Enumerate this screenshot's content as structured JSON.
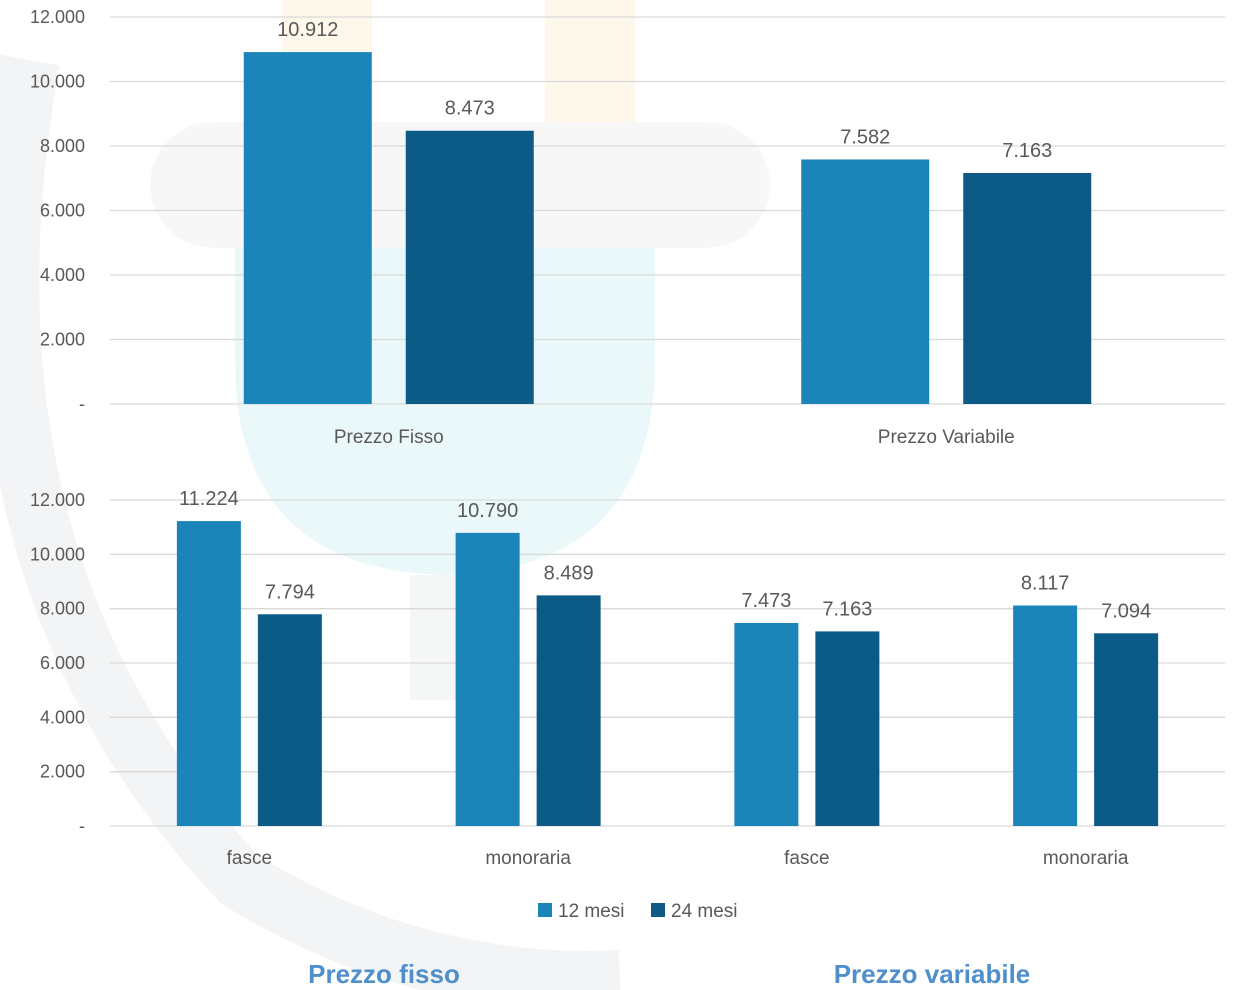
{
  "colors": {
    "series_12": "#1b84b8",
    "series_24": "#0c5a86"
  },
  "legend": [
    {
      "label": "12 mesi",
      "color": "#1b84b8"
    },
    {
      "label": "24 mesi",
      "color": "#0c5a86"
    }
  ],
  "section_titles": {
    "left": "Prezzo fisso",
    "right": "Prezzo variabile"
  },
  "chart_data": [
    {
      "type": "bar",
      "categories": [
        "Prezzo Fisso",
        "Prezzo Variabile"
      ],
      "series": [
        {
          "name": "12 mesi",
          "values": [
            10912,
            7582
          ],
          "labels": [
            "10.912",
            "7.582"
          ]
        },
        {
          "name": "24 mesi",
          "values": [
            8473,
            7163
          ],
          "labels": [
            "8.473",
            "7.163"
          ]
        }
      ],
      "ylim": [
        0,
        12000
      ],
      "yticks": [
        "-",
        "2.000",
        "4.000",
        "6.000",
        "8.000",
        "10.000",
        "12.000"
      ],
      "grid": true
    },
    {
      "type": "bar",
      "categories": [
        "fasce",
        "monoraria",
        "fasce",
        "monoraria"
      ],
      "series": [
        {
          "name": "12 mesi",
          "values": [
            11224,
            10790,
            7473,
            8117
          ],
          "labels": [
            "11.224",
            "10.790",
            "7.473",
            "8.117"
          ]
        },
        {
          "name": "24 mesi",
          "values": [
            7794,
            8489,
            7163,
            7094
          ],
          "labels": [
            "7.794",
            "8.489",
            "7.163",
            "7.094"
          ]
        }
      ],
      "ylim": [
        0,
        12000
      ],
      "yticks": [
        "-",
        "2.000",
        "4.000",
        "6.000",
        "8.000",
        "10.000",
        "12.000"
      ],
      "grid": true,
      "legend_position": "bottom"
    }
  ]
}
